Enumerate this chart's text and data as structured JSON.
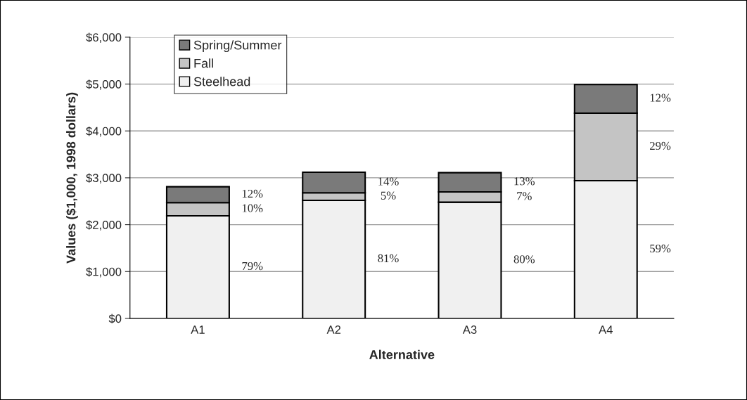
{
  "chart_data": {
    "type": "bar",
    "stacked": true,
    "xlabel": "Alternative",
    "ylabel": "Values ($1,000, 1998 dollars)",
    "categories": [
      "A1",
      "A2",
      "A3",
      "A4"
    ],
    "series": [
      {
        "name": "Steelhead",
        "color": "#f0f0f0",
        "values": [
          2190,
          2520,
          2480,
          2940
        ]
      },
      {
        "name": "Fall",
        "color": "#c4c4c4",
        "values": [
          280,
          160,
          220,
          1440
        ]
      },
      {
        "name": "Spring/Summer",
        "color": "#7a7a7a",
        "values": [
          340,
          440,
          410,
          610
        ]
      }
    ],
    "annotations": [
      "79%",
      "10%",
      "12%",
      "81%",
      "5%",
      "14%",
      "80%",
      "7%",
      "13%",
      "59%",
      "29%",
      "12%"
    ],
    "ylim": [
      0,
      6000
    ],
    "yticks": [
      {
        "value": 0,
        "label": "$0"
      },
      {
        "value": 1000,
        "label": "$1,000"
      },
      {
        "value": 2000,
        "label": "$2,000"
      },
      {
        "value": 3000,
        "label": "$3,000"
      },
      {
        "value": 4000,
        "label": "$4,000"
      },
      {
        "value": 5000,
        "label": "$5,000"
      },
      {
        "value": 6000,
        "label": "$6,000"
      }
    ],
    "grid": "y",
    "legend": "top left"
  }
}
